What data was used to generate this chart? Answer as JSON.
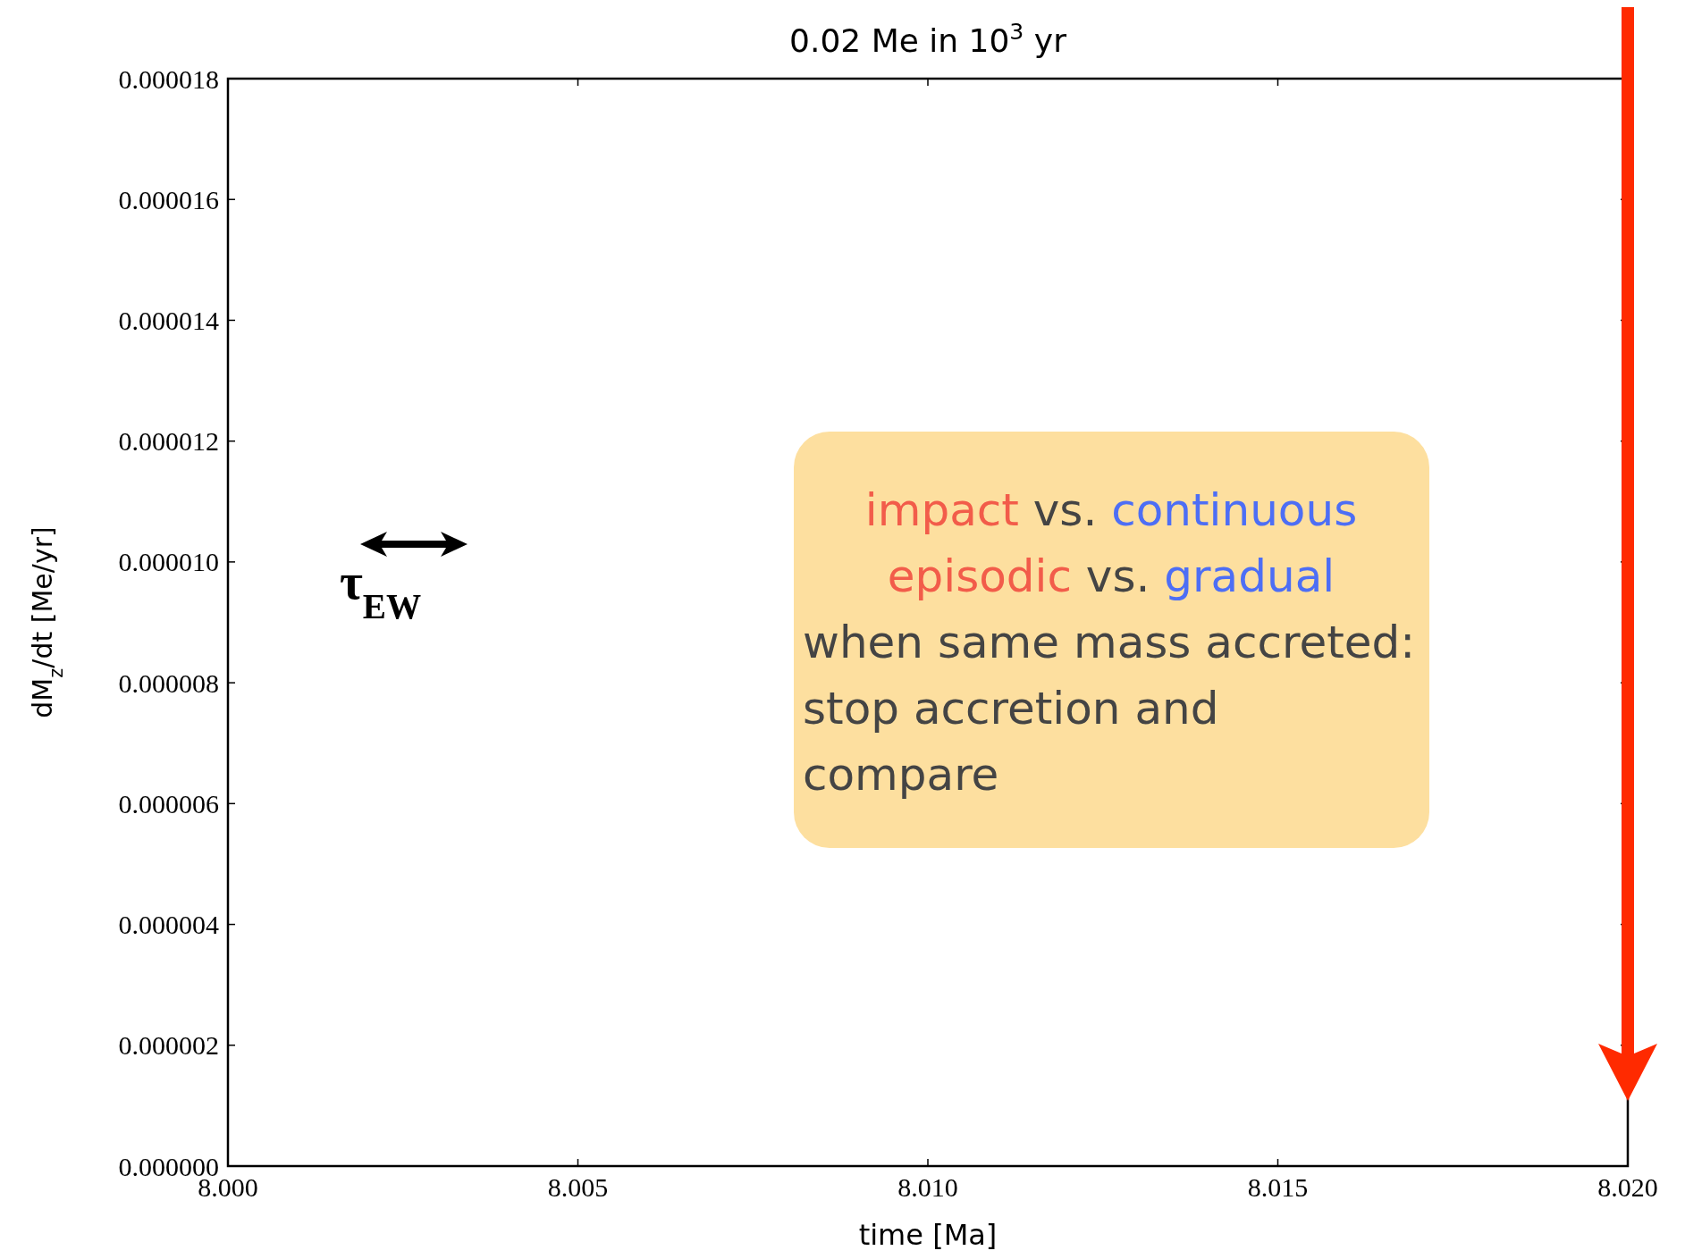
{
  "chart_data": {
    "type": "line",
    "title": "0.02 Me in 10$^{3}$ yr",
    "xlabel": "time [Ma]",
    "ylabel": "dM$_{z}$/dt [Me/yr]",
    "xlim": [
      8.0,
      8.02
    ],
    "xticks": [
      {
        "value": 8.0,
        "label": "8.000"
      },
      {
        "value": 8.005,
        "label": "8.005"
      },
      {
        "value": 8.01,
        "label": "8.010"
      },
      {
        "value": 8.015,
        "label": "8.015"
      },
      {
        "value": 8.02,
        "label": "8.020"
      }
    ],
    "ylim": [
      0,
      1.8e-05
    ],
    "yticks": [
      {
        "value": 0,
        "label": "0.000000"
      },
      {
        "value": 2e-06,
        "label": "0.000002"
      },
      {
        "value": 4e-06,
        "label": "0.000004"
      },
      {
        "value": 6e-06,
        "label": "0.000006"
      },
      {
        "value": 8e-06,
        "label": "0.000008"
      },
      {
        "value": 1e-05,
        "label": "0.000010"
      },
      {
        "value": 1.2e-05,
        "label": "0.000012"
      },
      {
        "value": 1.4e-05,
        "label": "0.000014"
      },
      {
        "value": 1.6e-05,
        "label": "0.000016"
      },
      {
        "value": 1.8e-05,
        "label": "0.000018"
      }
    ],
    "grid": false,
    "ref_lines": [
      {
        "axis": "x",
        "value": 8.02,
        "color": "#ff2a00",
        "line_style": "solid"
      }
    ],
    "annotations": [
      "τ$_{EW}$",
      "impact",
      "vs.",
      "continuous",
      "episodic",
      "vs.",
      "gradual",
      "when same mass accreted:",
      "stop accretion and",
      "compare"
    ]
  }
}
